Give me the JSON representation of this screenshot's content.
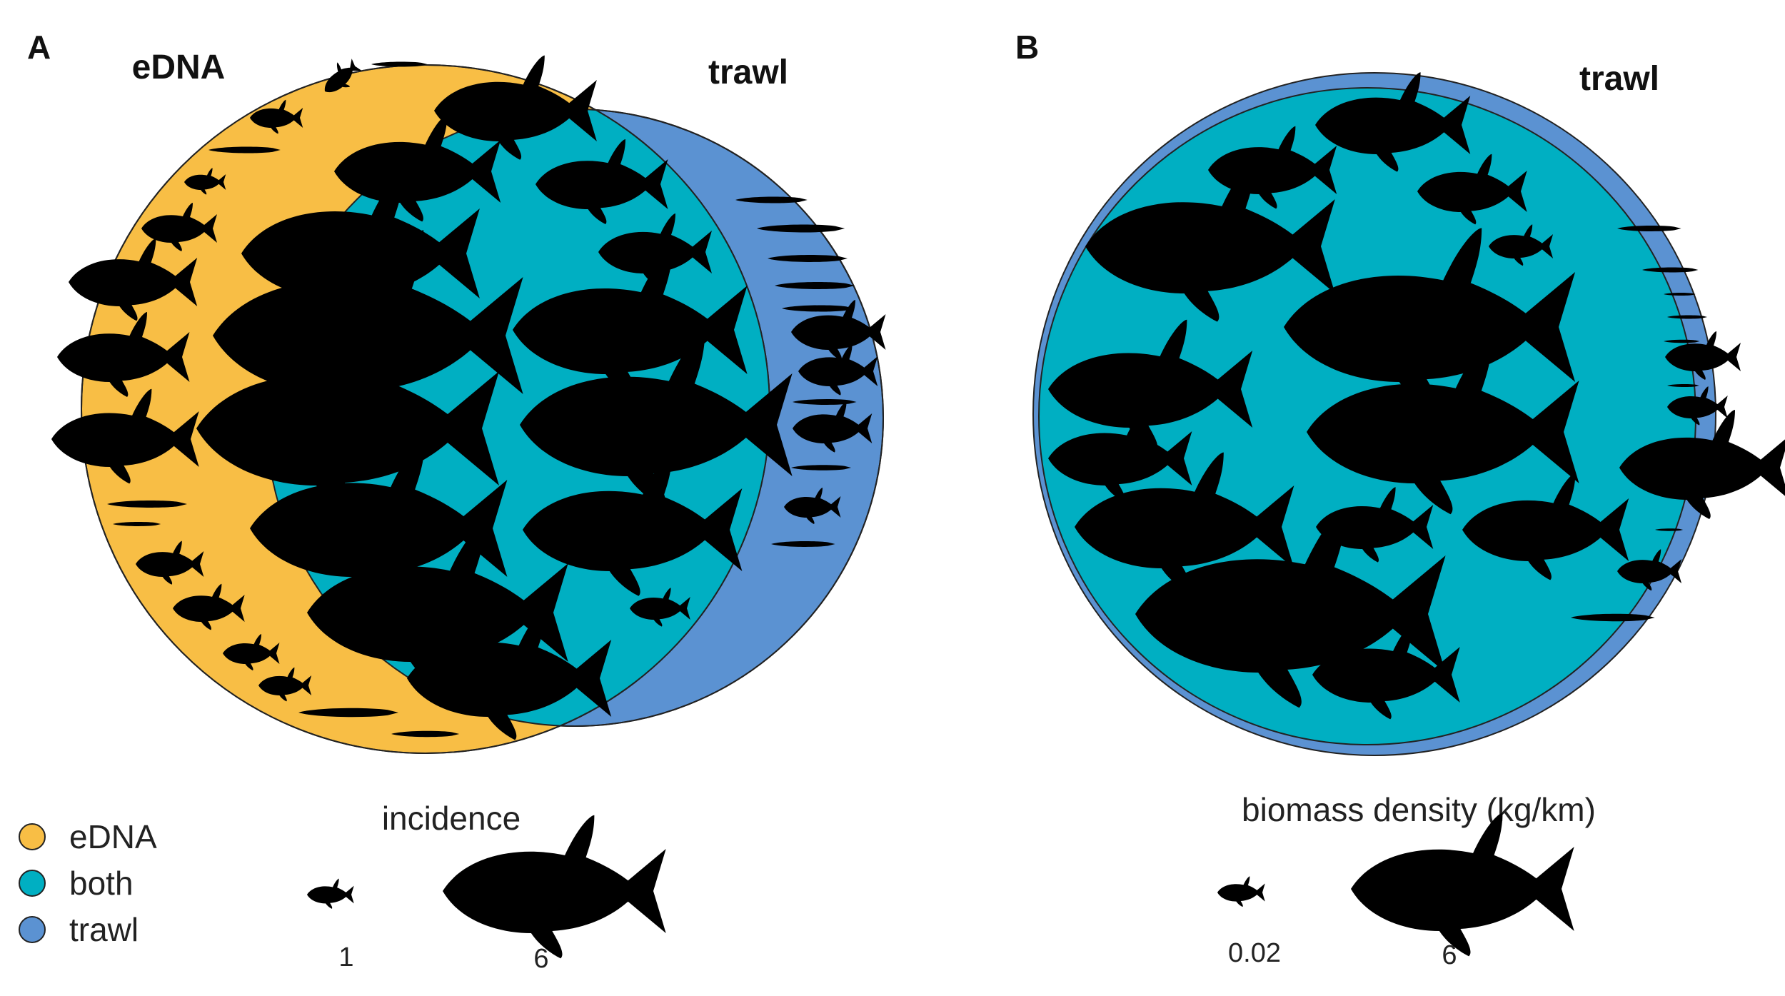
{
  "colors": {
    "edna": "#F8BE45",
    "both": "#00AFC2",
    "trawl": "#5B92D2",
    "fish": "#000000",
    "outline": "#222222"
  },
  "panel_a": {
    "letter": "A",
    "edna_label": "eDNA",
    "trawl_label": "trawl",
    "counts": {
      "edna_only": 24,
      "both": 19,
      "trawl_only": 16
    }
  },
  "panel_b": {
    "letter": "B",
    "trawl_label": "trawl",
    "counts": {
      "both": 16,
      "trawl_only": 15
    }
  },
  "legend": {
    "items": [
      {
        "label": "eDNA",
        "color_key": "edna"
      },
      {
        "label": "both",
        "color_key": "both"
      },
      {
        "label": "trawl",
        "color_key": "trawl"
      }
    ]
  },
  "scale_incidence": {
    "title": "incidence",
    "min_label": "1",
    "max_label": "6"
  },
  "scale_biomass": {
    "title": "biomass density (kg/km)",
    "min_label": "0.02",
    "max_label": "6"
  },
  "icons": {
    "fish": "fish-silhouette-icon"
  }
}
